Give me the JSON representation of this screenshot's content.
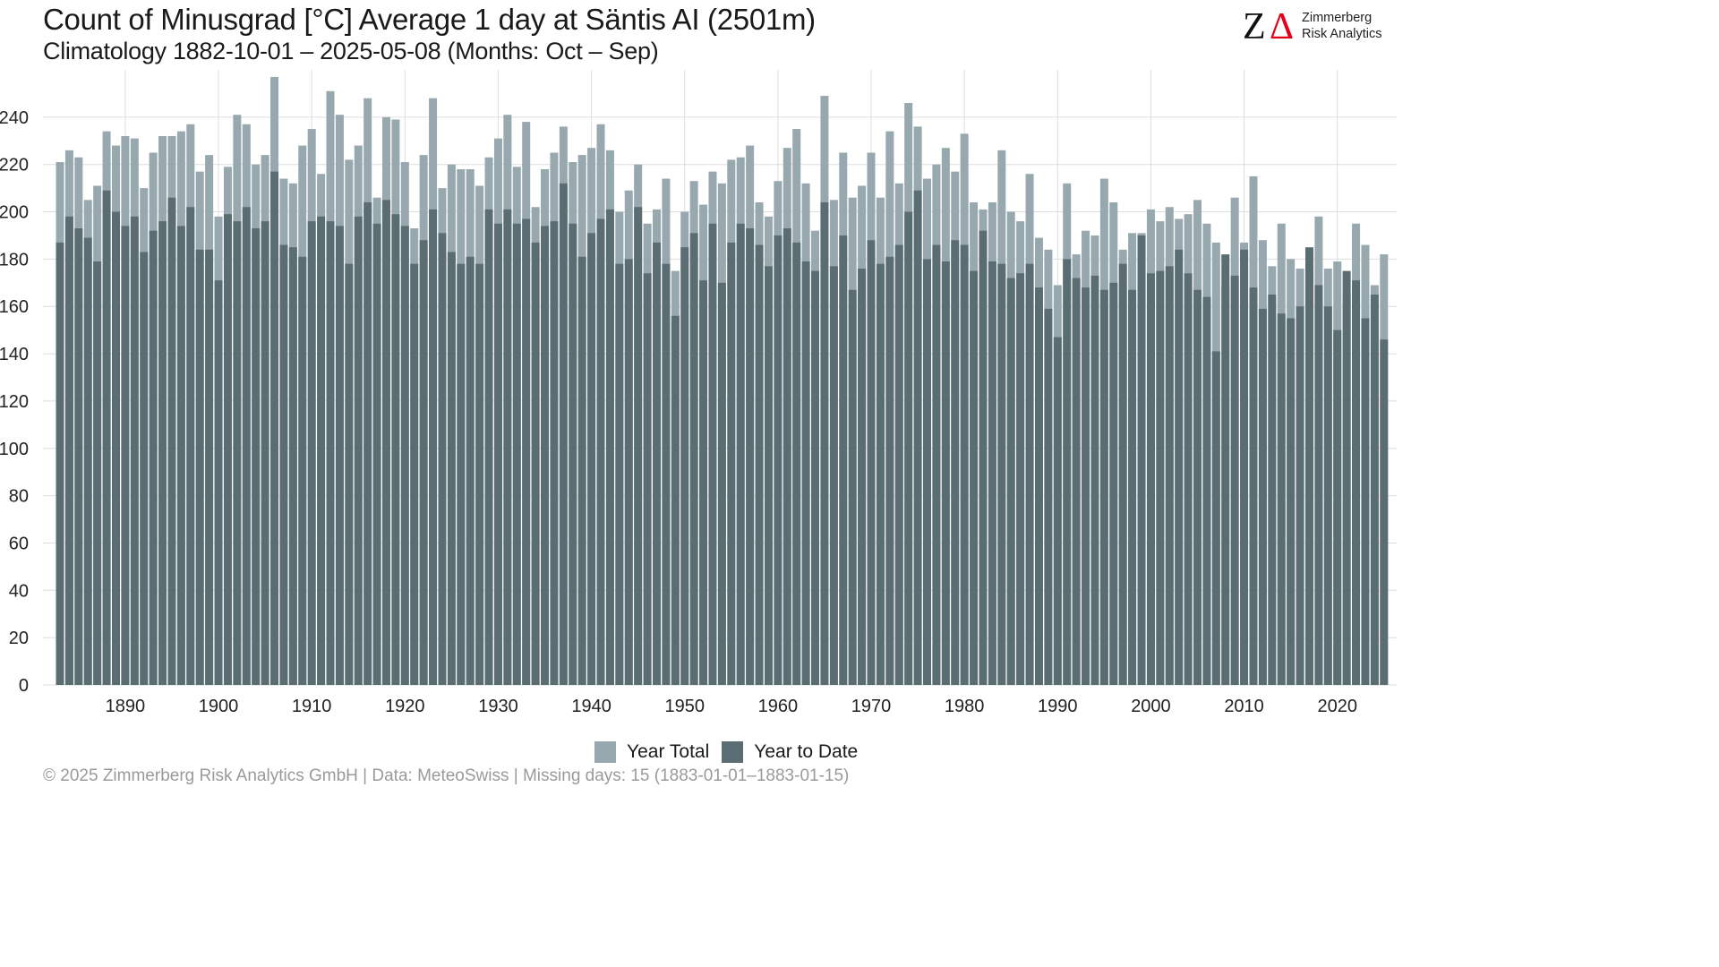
{
  "header": {
    "title": "Count of Minusgrad [°C] Average 1 day at Säntis  AI (2501m)",
    "subtitle": "Climatology 1882-10-01 – 2025-05-08 (Months: Oct – Sep)"
  },
  "logo": {
    "mark_left": "Z",
    "mark_right": "Δ",
    "line1": "Zimmerberg",
    "line2": "Risk Analytics"
  },
  "legend": {
    "items": [
      {
        "label": "Year Total",
        "color": "#97a8ae"
      },
      {
        "label": "Year to Date",
        "color": "#5a6d72"
      }
    ]
  },
  "footer": {
    "text": "©  2025 Zimmerberg Risk Analytics GmbH | Data: MeteoSwiss | Missing days: 15 (1883-01-01–1883-01-15)"
  },
  "colors": {
    "year_total": "#97a8ae",
    "year_to_date": "#5a6d72",
    "grid": "#dedede"
  },
  "chart_data": {
    "type": "bar",
    "stacking": "overlay",
    "x_start": 1883,
    "x_end": 2025,
    "xticks": [
      1890,
      1900,
      1910,
      1920,
      1930,
      1940,
      1950,
      1960,
      1970,
      1980,
      1990,
      2000,
      2010,
      2020
    ],
    "yticks": [
      0,
      20,
      40,
      60,
      80,
      100,
      120,
      140,
      160,
      180,
      200,
      220,
      240
    ],
    "ylim": [
      0,
      260
    ],
    "grid": true,
    "legend_position": "bottom",
    "series": [
      {
        "name": "Year Total",
        "values": [
          221,
          226,
          223,
          205,
          211,
          234,
          228,
          232,
          231,
          210,
          225,
          232,
          232,
          234,
          237,
          217,
          224,
          198,
          219,
          241,
          237,
          220,
          224,
          257,
          214,
          212,
          228,
          235,
          216,
          251,
          241,
          222,
          228,
          248,
          206,
          240,
          239,
          221,
          193,
          224,
          248,
          210,
          220,
          218,
          218,
          211,
          223,
          231,
          241,
          219,
          238,
          202,
          218,
          225,
          236,
          221,
          224,
          227,
          237,
          226,
          200,
          209,
          220,
          195,
          201,
          214,
          175,
          200,
          213,
          203,
          217,
          212,
          222,
          223,
          228,
          204,
          198,
          213,
          227,
          235,
          212,
          192,
          249,
          205,
          225,
          206,
          211,
          225,
          206,
          234,
          212,
          246,
          236,
          214,
          220,
          227,
          217,
          233,
          204,
          201,
          204,
          226,
          200,
          196,
          216,
          189,
          184,
          169,
          212,
          182,
          192,
          190,
          214,
          204,
          184,
          191,
          191,
          201,
          196,
          202,
          197,
          199,
          205,
          195,
          187,
          168,
          206,
          187,
          215,
          188,
          177,
          195,
          180,
          176,
          177,
          198,
          176,
          179,
          165,
          195,
          186,
          169,
          182,
          null
        ]
      },
      {
        "name": "Year to Date",
        "values": [
          187,
          198,
          193,
          189,
          179,
          209,
          200,
          194,
          198,
          183,
          192,
          196,
          206,
          194,
          202,
          184,
          184,
          171,
          199,
          196,
          202,
          193,
          196,
          217,
          186,
          185,
          181,
          196,
          198,
          196,
          194,
          178,
          198,
          204,
          195,
          205,
          199,
          194,
          178,
          188,
          201,
          191,
          183,
          178,
          181,
          178,
          201,
          195,
          201,
          195,
          197,
          187,
          194,
          196,
          212,
          195,
          181,
          191,
          197,
          201,
          178,
          180,
          202,
          174,
          187,
          178,
          156,
          185,
          191,
          171,
          195,
          170,
          187,
          195,
          193,
          186,
          177,
          190,
          193,
          187,
          179,
          175,
          204,
          177,
          190,
          167,
          176,
          188,
          178,
          181,
          186,
          200,
          209,
          180,
          186,
          179,
          188,
          186,
          175,
          192,
          179,
          178,
          172,
          174,
          178,
          168,
          159,
          147,
          180,
          172,
          168,
          173,
          167,
          170,
          178,
          167,
          190,
          174,
          175,
          177,
          184,
          174,
          167,
          164,
          141,
          182,
          173,
          184,
          168,
          159,
          165,
          157,
          155,
          160,
          185,
          169,
          160,
          150,
          175,
          171,
          155,
          165,
          146
        ]
      }
    ]
  }
}
